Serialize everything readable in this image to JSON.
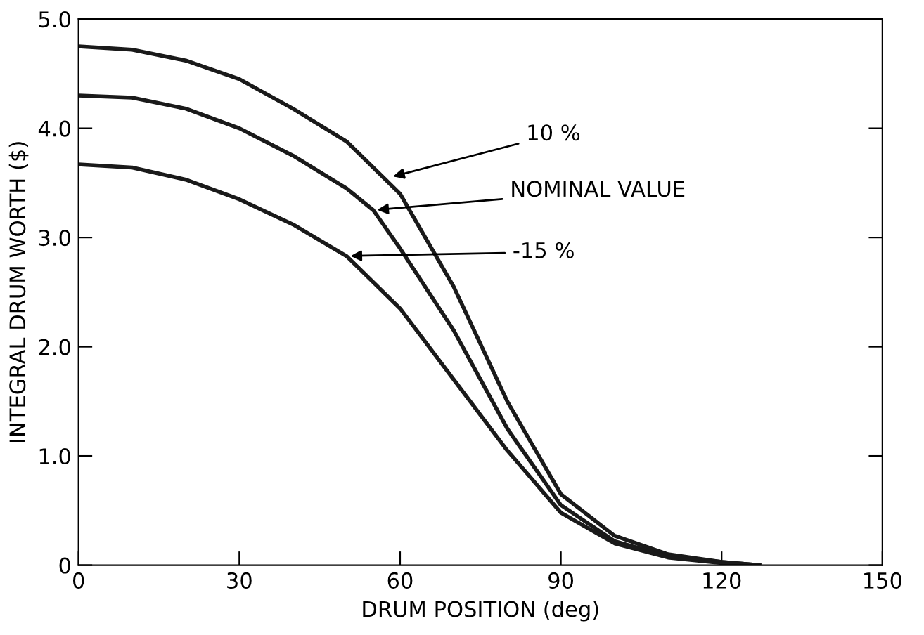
{
  "chart_data": {
    "type": "line",
    "xlabel": "DRUM POSITION (deg)",
    "ylabel": "INTEGRAL DRUM WORTH ($)",
    "xlim": [
      0,
      150
    ],
    "xticks": [
      0,
      30,
      60,
      90,
      120,
      150
    ],
    "ylim": [
      0,
      5
    ],
    "yticks": [
      0,
      {
        "value": 1,
        "label": "1.0"
      },
      {
        "value": 2,
        "label": "2.0"
      },
      {
        "value": 3,
        "label": "3.0"
      },
      {
        "value": 4,
        "label": "4.0"
      },
      {
        "value": 5,
        "label": "5.0"
      }
    ],
    "grid": false,
    "legend": false,
    "marker": "none",
    "line_style": "solid",
    "series": [
      {
        "color": "#1a1a1a",
        "x": [
          0,
          10,
          20,
          30,
          40,
          50,
          60,
          70,
          80,
          90,
          100,
          110,
          120,
          127
        ],
        "values": [
          4.75,
          4.72,
          4.62,
          4.45,
          4.18,
          3.88,
          3.4,
          2.55,
          1.5,
          0.65,
          0.27,
          0.1,
          0.03,
          0
        ]
      },
      {
        "color": "#1a1a1a",
        "x": [
          0,
          10,
          20,
          30,
          40,
          50,
          55,
          60,
          70,
          80,
          90,
          100,
          110,
          120,
          127
        ],
        "values": [
          4.3,
          4.28,
          4.18,
          4.0,
          3.75,
          3.45,
          3.25,
          2.9,
          2.15,
          1.25,
          0.55,
          0.22,
          0.08,
          0.03,
          0
        ]
      },
      {
        "color": "#1a1a1a",
        "x": [
          0,
          10,
          20,
          30,
          40,
          50,
          60,
          70,
          80,
          90,
          100,
          110,
          120,
          127
        ],
        "values": [
          3.67,
          3.64,
          3.53,
          3.35,
          3.12,
          2.83,
          2.35,
          1.7,
          1.05,
          0.48,
          0.2,
          0.07,
          0.02,
          0
        ]
      }
    ],
    "annotations": [
      {
        "text": "10 %",
        "x": 58,
        "y": 3.55
      },
      {
        "text": "NOMINAL VALUE",
        "x": 55,
        "y": 3.25
      },
      {
        "text": "-15 %",
        "x": 50,
        "y": 2.83
      }
    ]
  }
}
